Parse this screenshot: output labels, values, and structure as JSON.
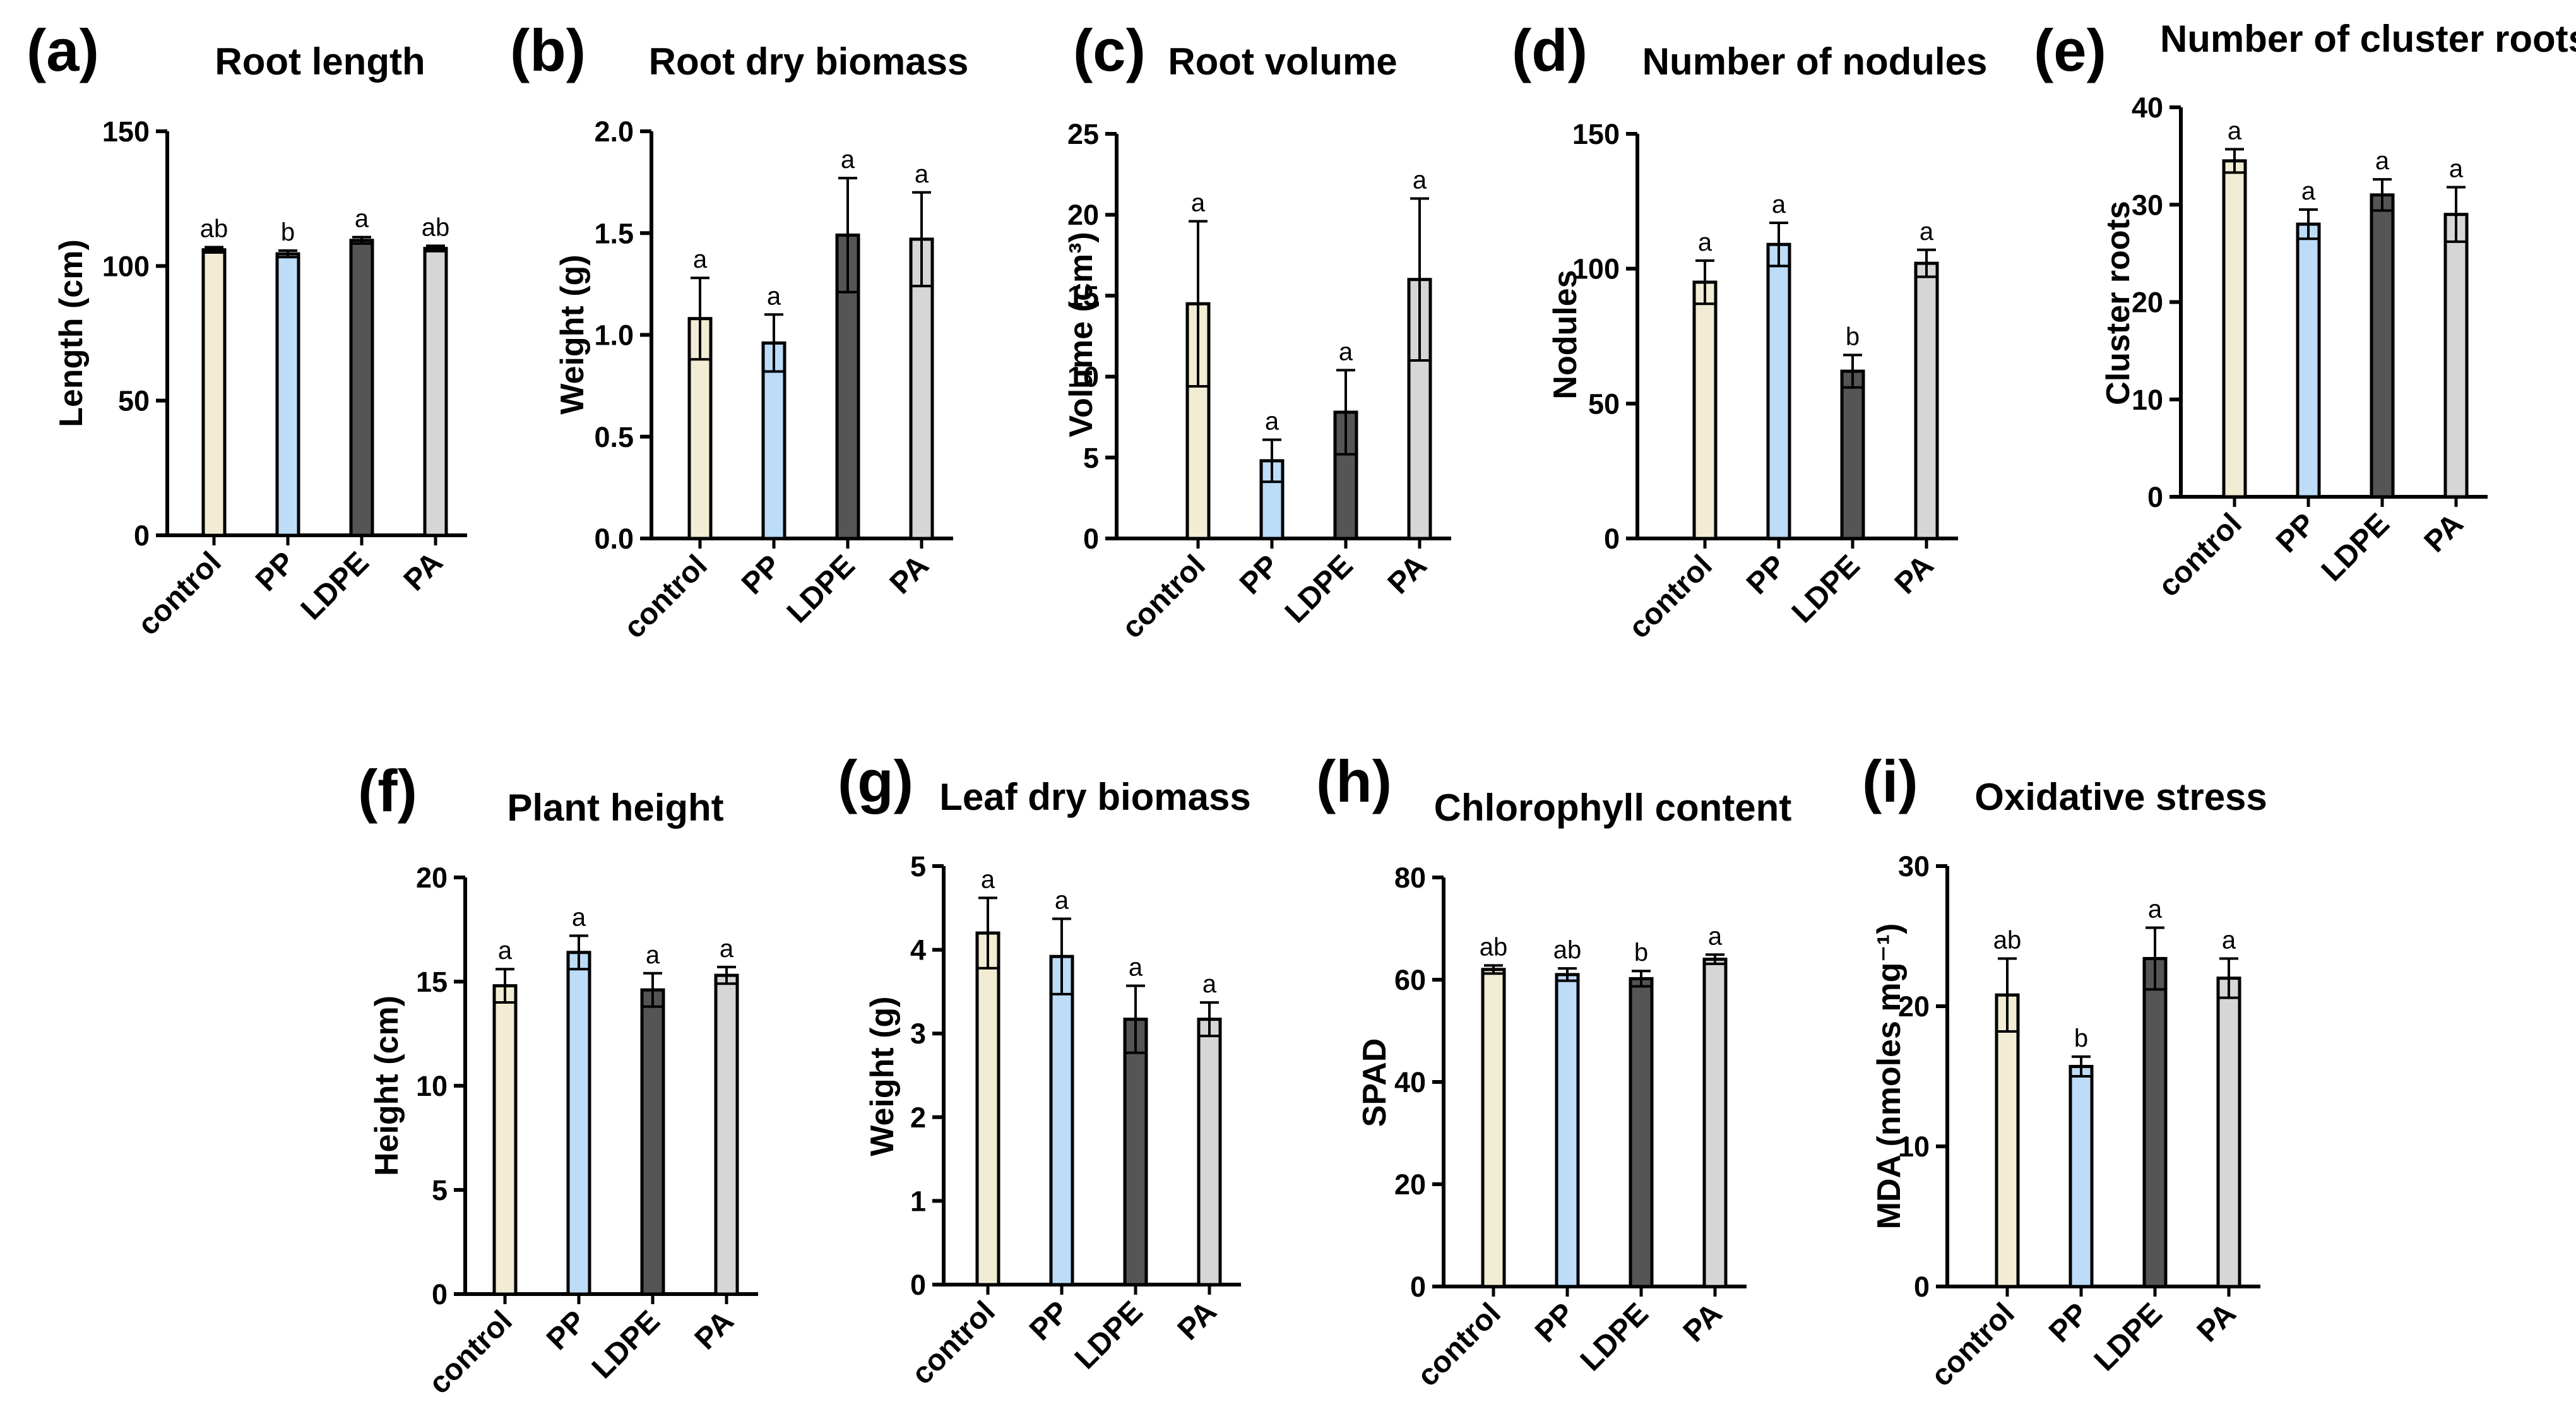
{
  "figure": {
    "group_colors": {
      "control": "#f1ecd3",
      "PP": "#bcdcf8",
      "LDPE": "#555555",
      "PA": "#d6d6d6"
    }
  },
  "chart_data": [
    {
      "type": "bar",
      "letter": "(a)",
      "title": "Root length",
      "ylabel": "Length (cm)",
      "categories": [
        "control",
        "PP",
        "LDPE",
        "PA"
      ],
      "values": [
        106,
        104.5,
        109.5,
        106.5
      ],
      "errors": [
        1,
        1.2,
        1.2,
        1
      ],
      "significance": [
        "ab",
        "b",
        "a",
        "ab"
      ],
      "ylim": [
        0,
        150
      ],
      "ticks": [
        0,
        50,
        100,
        150
      ],
      "tick_labels": [
        "0",
        "50",
        "100",
        "150"
      ]
    },
    {
      "type": "bar",
      "letter": "(b)",
      "title": "Root dry biomass",
      "ylabel": "Weight (g)",
      "categories": [
        "control",
        "PP",
        "LDPE",
        "PA"
      ],
      "values": [
        1.08,
        0.96,
        1.49,
        1.47
      ],
      "errors": [
        0.2,
        0.14,
        0.28,
        0.23
      ],
      "significance": [
        "a",
        "a",
        "a",
        "a"
      ],
      "ylim": [
        0,
        2.0
      ],
      "ticks": [
        0,
        0.5,
        1.0,
        1.5,
        2.0
      ],
      "tick_labels": [
        "0.0",
        "0.5",
        "1.0",
        "1.5",
        "2.0"
      ]
    },
    {
      "type": "bar",
      "letter": "(c)",
      "title": "Root volume",
      "ylabel": "Volume (cm³)",
      "categories": [
        "control",
        "PP",
        "LDPE",
        "PA"
      ],
      "values": [
        14.5,
        4.8,
        7.8,
        16.0
      ],
      "errors": [
        5.1,
        1.3,
        2.6,
        5.0
      ],
      "significance": [
        "a",
        "a",
        "a",
        "a"
      ],
      "ylim": [
        0,
        25
      ],
      "ticks": [
        0,
        5,
        10,
        15,
        20,
        25
      ],
      "tick_labels": [
        "0",
        "5",
        "10",
        "15",
        "20",
        "25"
      ]
    },
    {
      "type": "bar",
      "letter": "(d)",
      "title": "Number of nodules",
      "ylabel": "Nodules",
      "categories": [
        "control",
        "PP",
        "LDPE",
        "PA"
      ],
      "values": [
        95,
        109,
        62,
        102
      ],
      "errors": [
        8,
        8,
        6,
        5
      ],
      "significance": [
        "a",
        "a",
        "b",
        "a"
      ],
      "ylim": [
        0,
        150
      ],
      "ticks": [
        0,
        50,
        100,
        150
      ],
      "tick_labels": [
        "0",
        "50",
        "100",
        "150"
      ]
    },
    {
      "type": "bar",
      "letter": "(e)",
      "title": "Number of cluster roots",
      "ylabel": "Cluster roots",
      "categories": [
        "control",
        "PP",
        "LDPE",
        "PA"
      ],
      "values": [
        34.5,
        28.0,
        31.0,
        29.0
      ],
      "errors": [
        1.2,
        1.5,
        1.6,
        2.8
      ],
      "significance": [
        "a",
        "a",
        "a",
        "a"
      ],
      "ylim": [
        0,
        40
      ],
      "ticks": [
        0,
        10,
        20,
        30,
        40
      ],
      "tick_labels": [
        "0",
        "10",
        "20",
        "30",
        "40"
      ]
    },
    {
      "type": "bar",
      "letter": "(f)",
      "title": "Plant height",
      "ylabel": "Height (cm)",
      "categories": [
        "control",
        "PP",
        "LDPE",
        "PA"
      ],
      "values": [
        14.8,
        16.4,
        14.6,
        15.3
      ],
      "errors": [
        0.8,
        0.8,
        0.8,
        0.4
      ],
      "significance": [
        "a",
        "a",
        "a",
        "a"
      ],
      "ylim": [
        0,
        20
      ],
      "ticks": [
        0,
        5,
        10,
        15,
        20
      ],
      "tick_labels": [
        "0",
        "5",
        "10",
        "15",
        "20"
      ]
    },
    {
      "type": "bar",
      "letter": "(g)",
      "title": "Leaf dry biomass",
      "ylabel": "Weight (g)",
      "categories": [
        "control",
        "PP",
        "LDPE",
        "PA"
      ],
      "values": [
        4.2,
        3.92,
        3.17,
        3.17
      ],
      "errors": [
        0.42,
        0.45,
        0.4,
        0.2
      ],
      "significance": [
        "a",
        "a",
        "a",
        "a"
      ],
      "ylim": [
        0,
        5
      ],
      "ticks": [
        0,
        1,
        2,
        3,
        4,
        5
      ],
      "tick_labels": [
        "0",
        "1",
        "2",
        "3",
        "4",
        "5"
      ]
    },
    {
      "type": "bar",
      "letter": "(h)",
      "title": "Chlorophyll content",
      "ylabel": "SPAD",
      "categories": [
        "control",
        "PP",
        "LDPE",
        "PA"
      ],
      "values": [
        62,
        61,
        60.2,
        64
      ],
      "errors": [
        0.8,
        1.2,
        1.5,
        0.9
      ],
      "significance": [
        "ab",
        "ab",
        "b",
        "a"
      ],
      "ylim": [
        0,
        80
      ],
      "ticks": [
        0,
        20,
        40,
        60,
        80
      ],
      "tick_labels": [
        "0",
        "20",
        "40",
        "60",
        "80"
      ]
    },
    {
      "type": "bar",
      "letter": "(i)",
      "title": "Oxidative stress",
      "ylabel": "MDA (nmoles mg⁻¹)",
      "categories": [
        "control",
        "PP",
        "LDPE",
        "PA"
      ],
      "values": [
        20.8,
        15.7,
        23.4,
        22.0
      ],
      "errors": [
        2.6,
        0.7,
        2.2,
        1.4
      ],
      "significance": [
        "ab",
        "b",
        "a",
        "a"
      ],
      "ylim": [
        0,
        30
      ],
      "ticks": [
        0,
        10,
        20,
        30
      ],
      "tick_labels": [
        "0",
        "10",
        "20",
        "30"
      ]
    }
  ]
}
